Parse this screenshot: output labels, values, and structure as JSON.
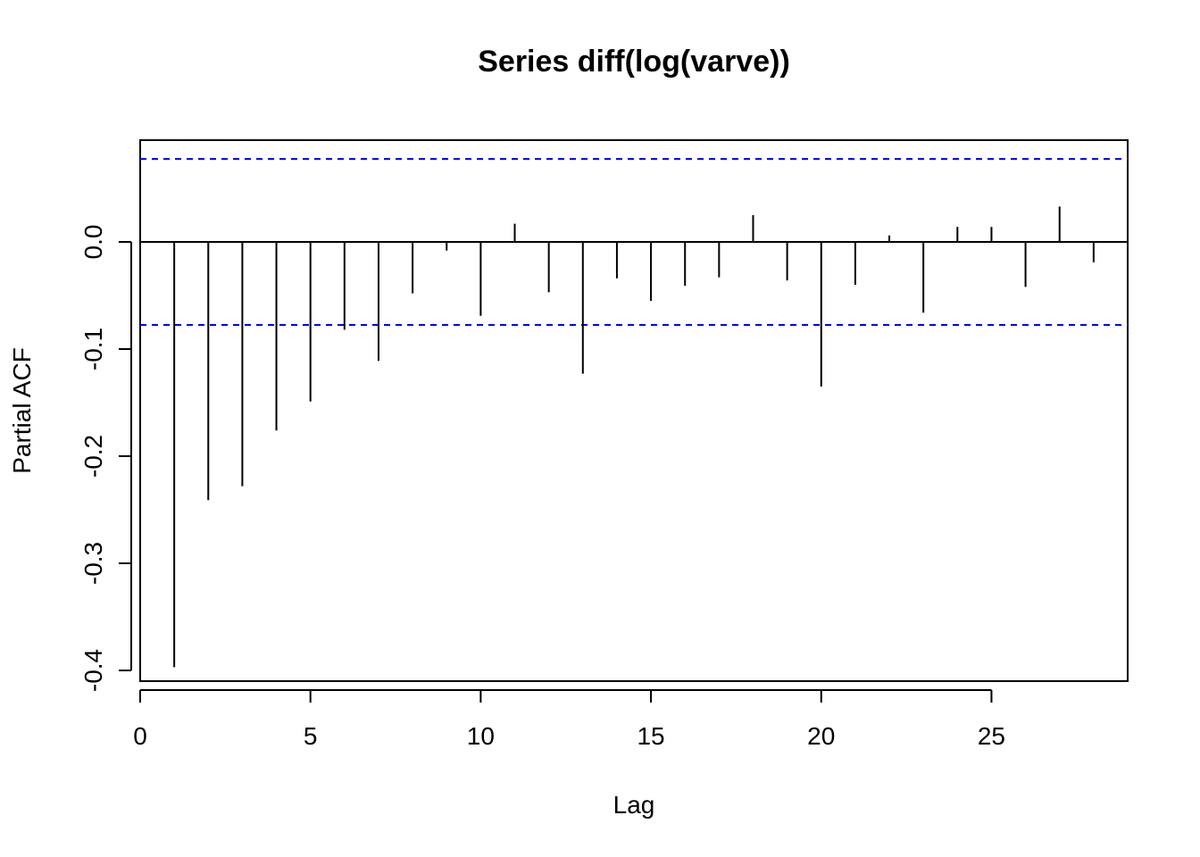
{
  "chart_data": {
    "type": "bar",
    "title": "Series  diff(log(varve))",
    "xlabel": "Lag",
    "ylabel": "Partial ACF",
    "xlim": [
      0,
      29
    ],
    "ylim": [
      -0.41,
      0.095
    ],
    "xticks": [
      0,
      5,
      10,
      15,
      20,
      25
    ],
    "xtick_labels": [
      "0",
      "5",
      "10",
      "15",
      "20",
      "25"
    ],
    "yticks": [
      -0.4,
      -0.3,
      -0.2,
      -0.1,
      0.0
    ],
    "ytick_labels": [
      "-0.4",
      "-0.3",
      "-0.2",
      "-0.1",
      "0.0"
    ],
    "confidence_bounds": [
      0.0775,
      -0.0775
    ],
    "bound_color": "#0000ff",
    "bar_color": "#000000",
    "grid": false,
    "lags": [
      1,
      2,
      3,
      4,
      5,
      6,
      7,
      8,
      9,
      10,
      11,
      12,
      13,
      14,
      15,
      16,
      17,
      18,
      19,
      20,
      21,
      22,
      23,
      24,
      25,
      26,
      27,
      28
    ],
    "values": [
      -0.397,
      -0.241,
      -0.228,
      -0.176,
      -0.149,
      -0.082,
      -0.111,
      -0.048,
      -0.008,
      -0.069,
      0.017,
      -0.047,
      -0.123,
      -0.034,
      -0.055,
      -0.041,
      -0.033,
      0.025,
      -0.036,
      -0.135,
      -0.04,
      0.006,
      -0.066,
      0.014,
      0.014,
      -0.042,
      0.033,
      -0.019
    ]
  }
}
